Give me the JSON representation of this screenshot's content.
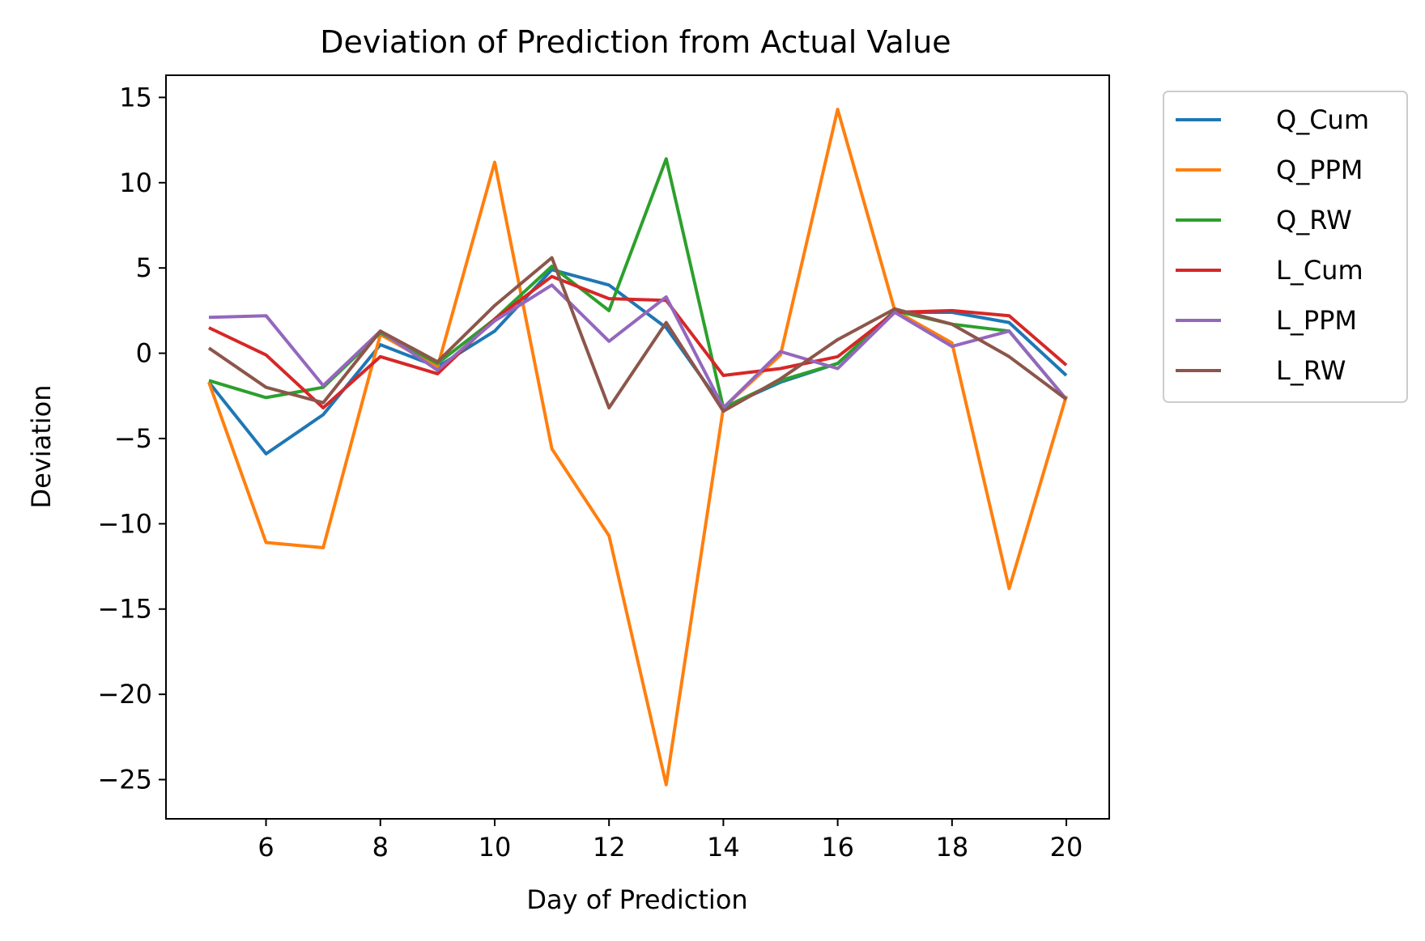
{
  "chart_data": {
    "type": "line",
    "title": "Deviation of Prediction from Actual Value",
    "xlabel": "Day of Prediction",
    "ylabel": "Deviation",
    "xlim": [
      4.25,
      20.75
    ],
    "ylim": [
      -27.3,
      16.3
    ],
    "xticks": [
      6,
      8,
      10,
      12,
      14,
      16,
      18,
      20
    ],
    "xtick_labels": [
      "6",
      "8",
      "10",
      "12",
      "14",
      "16",
      "18",
      "20"
    ],
    "yticks": [
      15,
      10,
      5,
      0,
      -5,
      -10,
      -15,
      -20,
      -25
    ],
    "ytick_labels": [
      "15",
      "10",
      "5",
      "0",
      "−5",
      "−10",
      "−15",
      "−20",
      "−25"
    ],
    "grid": false,
    "legend_position": "outside-top-right",
    "x": [
      5,
      6,
      7,
      8,
      9,
      10,
      11,
      12,
      13,
      14,
      15,
      16,
      17,
      18,
      19,
      20
    ],
    "series": [
      {
        "name": "Q_Cum",
        "color": "#1f77b4",
        "values": [
          -1.7,
          -5.9,
          -3.6,
          0.5,
          -0.8,
          1.3,
          4.9,
          4.0,
          1.5,
          -3.2,
          -1.7,
          -0.6,
          2.4,
          2.4,
          1.8,
          -1.3
        ]
      },
      {
        "name": "Q_PPM",
        "color": "#ff7f0e",
        "values": [
          -1.7,
          -11.1,
          -11.4,
          1.1,
          -0.8,
          11.2,
          -5.6,
          -10.7,
          -25.3,
          -3.2,
          -0.1,
          14.3,
          2.5,
          0.6,
          -13.8,
          -2.5
        ]
      },
      {
        "name": "Q_RW",
        "color": "#2ca02c",
        "values": [
          -1.6,
          -2.6,
          -2.0,
          1.2,
          -0.6,
          2.0,
          5.1,
          2.5,
          11.4,
          -3.2,
          -1.6,
          -0.6,
          2.5,
          1.7,
          1.3,
          -2.7
        ]
      },
      {
        "name": "L_Cum",
        "color": "#d62728",
        "values": [
          1.5,
          -0.1,
          -3.2,
          -0.2,
          -1.2,
          2.0,
          4.5,
          3.2,
          3.1,
          -1.3,
          -0.9,
          -0.2,
          2.4,
          2.5,
          2.2,
          -0.7
        ]
      },
      {
        "name": "L_PPM",
        "color": "#9467bd",
        "values": [
          2.1,
          2.2,
          -1.9,
          1.3,
          -1.0,
          1.9,
          4.0,
          0.7,
          3.3,
          -3.2,
          0.1,
          -0.9,
          2.4,
          0.4,
          1.3,
          -2.7
        ]
      },
      {
        "name": "L_RW",
        "color": "#8c564b",
        "values": [
          0.3,
          -2.0,
          -2.9,
          1.3,
          -0.5,
          2.8,
          5.6,
          -3.2,
          1.8,
          -3.4,
          -1.5,
          0.8,
          2.6,
          1.7,
          -0.2,
          -2.7
        ]
      }
    ]
  }
}
